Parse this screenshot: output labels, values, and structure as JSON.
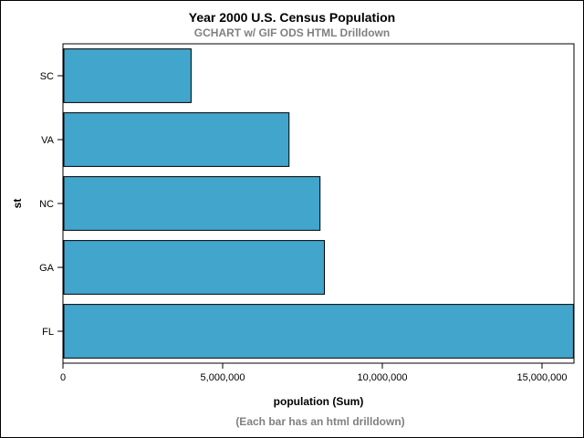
{
  "chart_data": {
    "type": "bar",
    "orientation": "horizontal",
    "title": "Year 2000 U.S. Census Population",
    "subtitle": "GCHART w/ GIF ODS HTML Drilldown",
    "footnote": "(Each bar has an html drilldown)",
    "xlabel": "population (Sum)",
    "ylabel": "st",
    "categories": [
      "SC",
      "VA",
      "NC",
      "GA",
      "FL"
    ],
    "values": [
      4012012,
      7078515,
      8049313,
      8186453,
      15982378
    ],
    "xlim": [
      0,
      16000000
    ],
    "xticks": [
      0,
      5000000,
      10000000,
      15000000
    ],
    "xtick_labels": [
      "0",
      "5,000,000",
      "10,000,000",
      "15,000,000"
    ],
    "bar_color": "#42A5CB",
    "bar_edge_color": "#000000",
    "grid": false
  }
}
